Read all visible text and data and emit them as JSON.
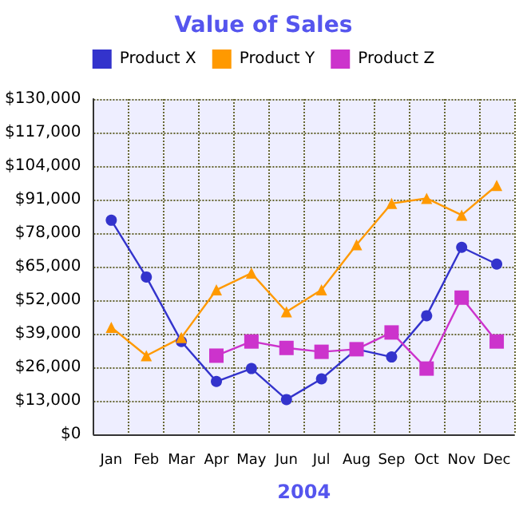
{
  "chart_data": {
    "type": "line",
    "title": "Value of Sales",
    "xlabel": "2004",
    "categories": [
      "Jan",
      "Feb",
      "Mar",
      "Apr",
      "May",
      "Jun",
      "Jul",
      "Aug",
      "Sep",
      "Oct",
      "Nov",
      "Dec"
    ],
    "series": [
      {
        "name": "Product X",
        "color": "#3333cc",
        "marker": "circle",
        "values": [
          83000,
          61000,
          36000,
          20500,
          25500,
          13500,
          21500,
          33000,
          30000,
          46000,
          72500,
          66000
        ]
      },
      {
        "name": "Product Y",
        "color": "#ff9900",
        "marker": "triangle",
        "values": [
          41500,
          30500,
          37500,
          56000,
          62500,
          47500,
          56000,
          73500,
          89500,
          91500,
          85000,
          96500
        ]
      },
      {
        "name": "Product Z",
        "color": "#cc33cc",
        "marker": "square",
        "values": [
          null,
          null,
          null,
          30500,
          36000,
          33500,
          32000,
          33000,
          39500,
          25500,
          53000,
          36000
        ]
      }
    ],
    "ylim": [
      0,
      130000
    ],
    "yticks": [
      {
        "value": 0,
        "label": "$0"
      },
      {
        "value": 13000,
        "label": "$13,000"
      },
      {
        "value": 26000,
        "label": "$26,000"
      },
      {
        "value": 39000,
        "label": "$39,000"
      },
      {
        "value": 52000,
        "label": "$52,000"
      },
      {
        "value": 65000,
        "label": "$65,000"
      },
      {
        "value": 78000,
        "label": "$78,000"
      },
      {
        "value": 91000,
        "label": "$91,000"
      },
      {
        "value": 104000,
        "label": "$104,000"
      },
      {
        "value": 117000,
        "label": "$117,000"
      },
      {
        "value": 130000,
        "label": "$130,000"
      }
    ],
    "grid": true,
    "legend": "top",
    "line_style": "solid"
  }
}
